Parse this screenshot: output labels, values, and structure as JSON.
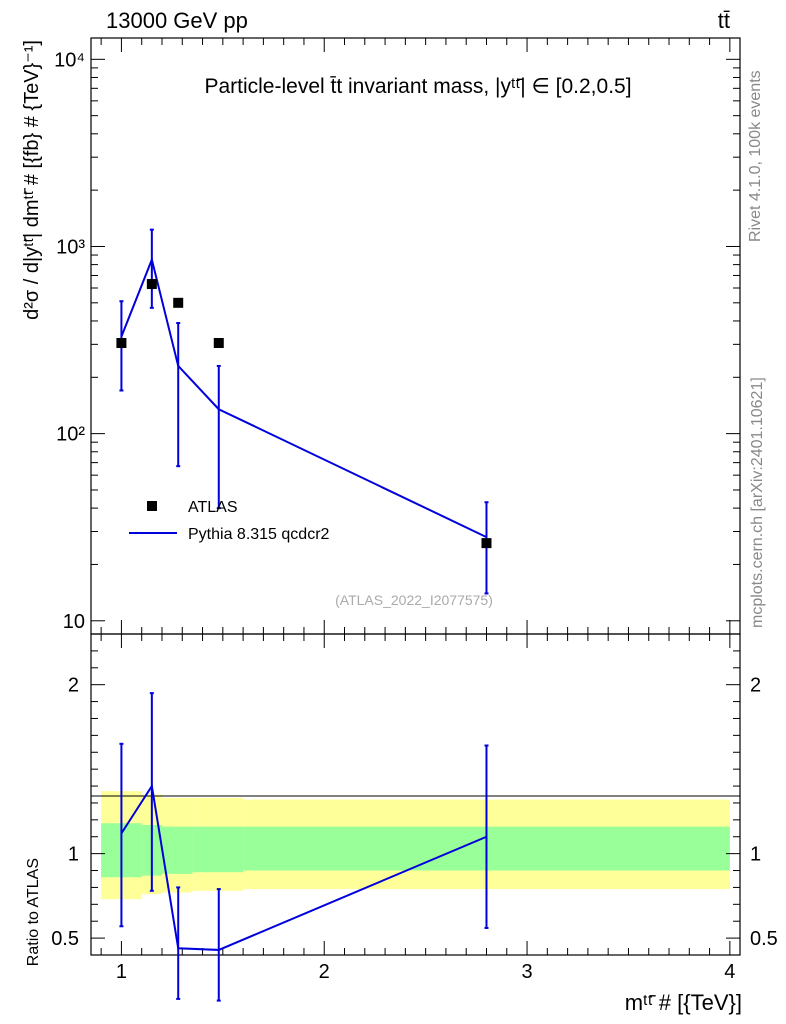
{
  "header": {
    "left": "13000 GeV pp",
    "right": "tt̄"
  },
  "side_labels": {
    "rivet": "Rivet 4.1.0,  100k events",
    "mcplots": "mcplots.cern.ch [arXiv:2401.10621]"
  },
  "chart_data": [
    {
      "type": "scatter",
      "title": "Particle-level t̄t invariant mass, |yᵗᵗ̄| ∈ [0.2,0.5]",
      "ylabel": "d²σ / d|yᵗᵗ̄| dmᵗᵗ̄ # [{fb} # {TeV}⁻¹]",
      "xlabel": "",
      "yscale": "log",
      "xlim": [
        0.85,
        4.05
      ],
      "ylim": [
        8.5,
        13000
      ],
      "y_tick_labels": [
        "10",
        "10²",
        "10³",
        "10⁴"
      ],
      "y_ticks": [
        10,
        100,
        1000,
        10000
      ],
      "watermark": "(ATLAS_2022_I2077575)",
      "legend_position": "middle-left",
      "series": [
        {
          "name": "ATLAS",
          "style": "markers",
          "color": "#000000",
          "x": [
            1.0,
            1.15,
            1.28,
            1.48,
            2.8
          ],
          "y": [
            305,
            630,
            500,
            305,
            26
          ]
        },
        {
          "name": "Pythia 8.315 qcdcr2",
          "style": "line",
          "color": "#0000dd",
          "x": [
            1.0,
            1.15,
            1.28,
            1.48,
            2.8
          ],
          "y": [
            330,
            850,
            230,
            135,
            28
          ],
          "err_low": [
            170,
            470,
            67,
            40,
            14
          ],
          "err_high": [
            510,
            1230,
            390,
            230,
            43
          ]
        }
      ]
    },
    {
      "type": "line",
      "ylabel": "Ratio to ATLAS",
      "xlabel": "mᵗᵗ̄ # [{TeV}]",
      "xlim": [
        0.85,
        4.05
      ],
      "ylim": [
        0.4,
        2.3
      ],
      "x_ticks": [
        1,
        2,
        3,
        4
      ],
      "x_tick_labels": [
        "1",
        "2",
        "3",
        "4"
      ],
      "y_ticks": [
        0.5,
        1,
        2
      ],
      "y_tick_labels": [
        "0.5",
        "1",
        "2"
      ],
      "bands": {
        "edges": [
          0.9,
          1.1,
          1.2,
          1.35,
          1.6,
          4.0
        ],
        "yellow": [
          [
            0.73,
            1.37
          ],
          [
            0.76,
            1.35
          ],
          [
            0.77,
            1.33
          ],
          [
            0.78,
            1.33
          ],
          [
            0.79,
            1.32
          ]
        ],
        "green": [
          [
            0.86,
            1.18
          ],
          [
            0.87,
            1.17
          ],
          [
            0.88,
            1.16
          ],
          [
            0.89,
            1.16
          ],
          [
            0.9,
            1.16
          ]
        ],
        "yellow_color": "#ffff99",
        "green_color": "#99ff99"
      },
      "series": [
        {
          "name": "Pythia 8.315 qcdcr2",
          "color": "#0000dd",
          "x": [
            1.0,
            1.15,
            1.28,
            1.48,
            2.8
          ],
          "y": [
            1.12,
            1.4,
            0.44,
            0.43,
            1.1
          ],
          "err_low": [
            0.57,
            0.78,
            0.14,
            0.13,
            0.56
          ],
          "err_high": [
            1.65,
            1.95,
            0.8,
            0.79,
            1.64
          ]
        }
      ]
    }
  ]
}
